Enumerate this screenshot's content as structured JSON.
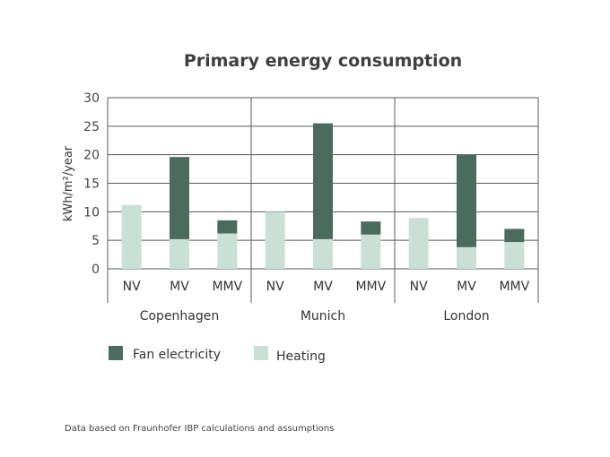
{
  "chart_data": {
    "type": "bar",
    "stacked": true,
    "title": "Primary energy consumption",
    "ylabel": "kWh/m²/year",
    "ylim": [
      0,
      30
    ],
    "yticks": [
      0,
      5,
      10,
      15,
      20,
      25,
      30
    ],
    "grid": true,
    "groups": [
      "Copenhagen",
      "Munich",
      "London"
    ],
    "categories": [
      "NV",
      "MV",
      "MMV",
      "NV",
      "MV",
      "MMV",
      "NV",
      "MV",
      "MMV"
    ],
    "series": [
      {
        "name": "Heating",
        "color": "#cadfd5",
        "values": [
          11.2,
          5.2,
          6.2,
          10.0,
          5.2,
          6.0,
          8.9,
          3.8,
          4.7
        ]
      },
      {
        "name": "Fan electricity",
        "color": "#4b6b5e",
        "values": [
          0,
          14.4,
          2.3,
          0,
          20.3,
          2.3,
          0,
          16.2,
          2.3
        ]
      }
    ],
    "legend_position": "bottom-left",
    "legend_order": [
      "Fan electricity",
      "Heating"
    ],
    "footnote": "Data based on Fraunhofer IBP calculations and assumptions"
  }
}
